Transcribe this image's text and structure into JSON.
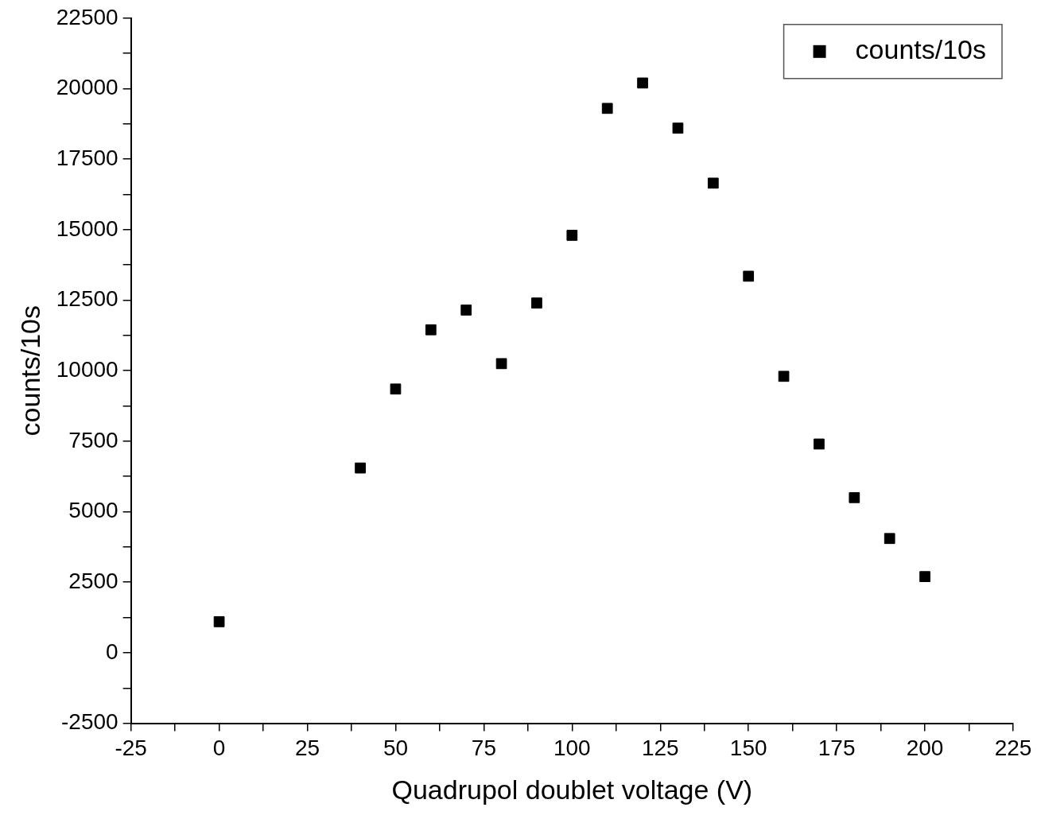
{
  "chart_data": {
    "type": "scatter",
    "xlabel": "Quadrupol doublet voltage (V)",
    "ylabel": "counts/10s",
    "x": [
      0,
      40,
      50,
      60,
      70,
      80,
      90,
      100,
      110,
      120,
      130,
      140,
      150,
      160,
      170,
      180,
      190,
      200
    ],
    "series": [
      {
        "name": "counts/10s",
        "color": "#000000",
        "values": [
          1100,
          6550,
          9350,
          11450,
          12150,
          10250,
          12400,
          14800,
          19300,
          20200,
          18600,
          16650,
          13350,
          9800,
          7400,
          5500,
          4050,
          2700
        ]
      }
    ],
    "xlim": [
      -25,
      225
    ],
    "xticks": [
      -25,
      {
        "value": -12.5,
        "label": null
      },
      0,
      {
        "value": 12.5,
        "label": null
      },
      25,
      {
        "value": 37.5,
        "label": null
      },
      50,
      {
        "value": 62.5,
        "label": null
      },
      75,
      {
        "value": 87.5,
        "label": null
      },
      100,
      {
        "value": 112.5,
        "label": null
      },
      125,
      {
        "value": 137.5,
        "label": null
      },
      150,
      {
        "value": 162.5,
        "label": null
      },
      175,
      {
        "value": 187.5,
        "label": null
      },
      200,
      {
        "value": 212.5,
        "label": null
      },
      225
    ],
    "ylim": [
      -2500,
      22500
    ],
    "yticks": [
      -2500,
      {
        "value": -1250,
        "label": null
      },
      0,
      {
        "value": 1250,
        "label": null
      },
      2500,
      {
        "value": 3750,
        "label": null
      },
      5000,
      {
        "value": 6250,
        "label": null
      },
      7500,
      {
        "value": 8750,
        "label": null
      },
      10000,
      {
        "value": 11250,
        "label": null
      },
      12500,
      {
        "value": 13750,
        "label": null
      },
      15000,
      {
        "value": 16250,
        "label": null
      },
      17500,
      {
        "value": 18750,
        "label": null
      },
      20000,
      {
        "value": 21250,
        "label": null
      },
      22500
    ],
    "grid": false,
    "legend": "top right",
    "marker": "square"
  }
}
